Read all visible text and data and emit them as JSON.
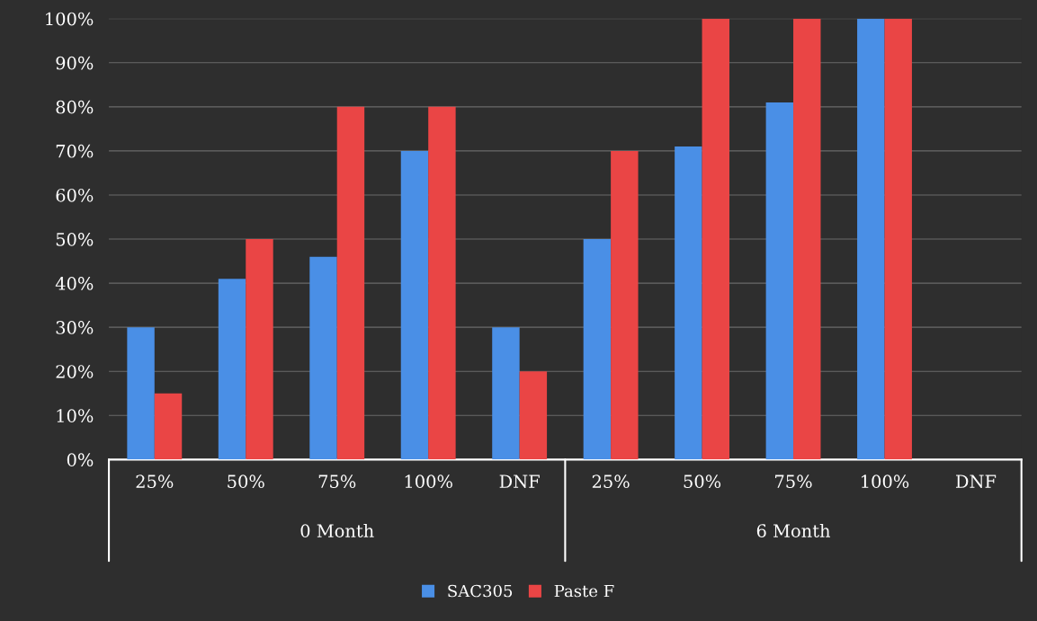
{
  "chart_data": {
    "type": "bar",
    "categories": [
      "25%",
      "50%",
      "75%",
      "100%",
      "DNF",
      "25%",
      "50%",
      "75%",
      "100%",
      "DNF"
    ],
    "series": [
      {
        "name": "SAC305",
        "color": "#4a8fe6",
        "values": [
          30,
          41,
          46,
          70,
          30,
          50,
          71,
          81,
          100,
          null
        ]
      },
      {
        "name": "Paste F",
        "color": "#ea4545",
        "values": [
          15,
          50,
          80,
          80,
          20,
          70,
          100,
          100,
          100,
          null
        ]
      }
    ],
    "annotations": [
      "0 Month",
      "6 Month"
    ],
    "ylim": [
      0,
      100
    ],
    "yticks": [
      {
        "value": 0,
        "label": "0%"
      },
      {
        "value": 10,
        "label": "10%"
      },
      {
        "value": 20,
        "label": "20%"
      },
      {
        "value": 30,
        "label": "30%"
      },
      {
        "value": 40,
        "label": "40%"
      },
      {
        "value": 50,
        "label": "50%"
      },
      {
        "value": 60,
        "label": "60%"
      },
      {
        "value": 70,
        "label": "70%"
      },
      {
        "value": 80,
        "label": "80%"
      },
      {
        "value": 90,
        "label": "90%"
      },
      {
        "value": 100,
        "label": "100%"
      }
    ],
    "grid": "y",
    "legend": "bottom"
  }
}
